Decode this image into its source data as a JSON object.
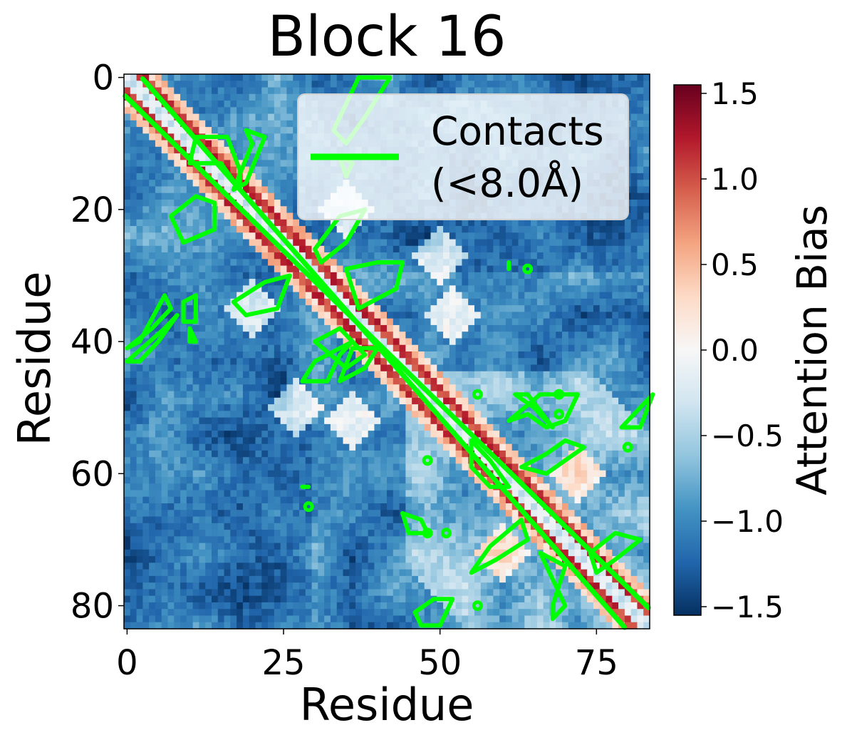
{
  "chart_data": {
    "type": "heatmap",
    "title": "Block 16",
    "xlabel": "Residue",
    "ylabel": "Residue",
    "n_residues": 84,
    "x_ticks": [
      0,
      25,
      50,
      75
    ],
    "y_ticks": [
      0,
      20,
      40,
      60,
      80
    ],
    "xlim": [
      -0.5,
      83.5
    ],
    "ylim": [
      83.5,
      -0.5
    ],
    "colorbar": {
      "label": "Attention Bias",
      "min": -1.55,
      "max": 1.55,
      "ticks": [
        1.5,
        1.0,
        0.5,
        0.0,
        -0.5,
        -1.0,
        -1.5
      ],
      "tick_labels": [
        "1.5",
        "1.0",
        "0.5",
        "0.0",
        "−0.5",
        "−1.0",
        "−1.5"
      ],
      "colormap": "RdBu_r"
    },
    "legend": {
      "label_line1": "Contacts",
      "label_line2": "(<8.0Å)",
      "placement": "upper right",
      "color": "#00ff00"
    },
    "contact_color": "#00ff00",
    "contact_threshold_angstrom": 8.0,
    "structure_notes": "strong positive bias along near-diagonal band (|i-j| about 1-3), diagonal itself alternates light values; off-diagonal mostly negative (-0.5 to -1.5), darkest in lower-left block"
  }
}
